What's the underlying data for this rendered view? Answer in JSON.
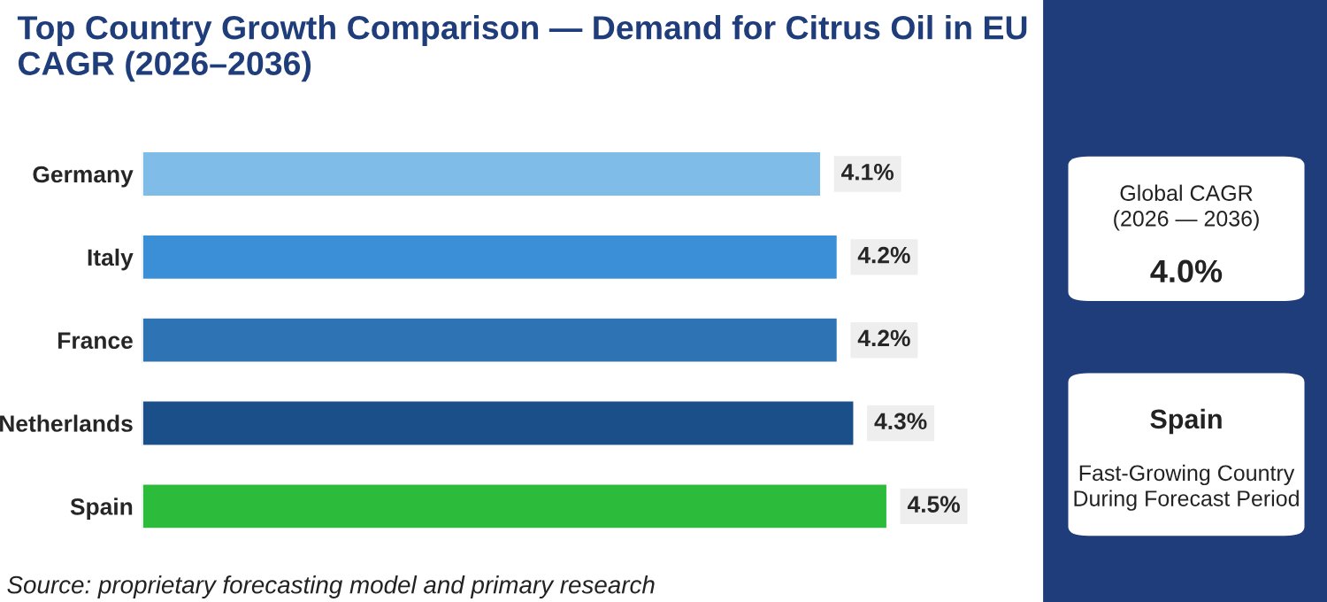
{
  "chart_data": {
    "type": "bar",
    "orientation": "horizontal",
    "title": "Top Country Growth Comparison — Demand for Citrus Oil in EU CAGR (2026–2036)",
    "categories": [
      "Germany",
      "Italy",
      "France",
      "Netherlands",
      "Spain"
    ],
    "values": [
      4.1,
      4.2,
      4.2,
      4.3,
      4.5
    ],
    "colors": [
      "#7fbde8",
      "#3a8fd6",
      "#2e74b5",
      "#1b4f8a",
      "#2dbb3c"
    ],
    "tick_labels": "y",
    "grid": false,
    "legend": false,
    "value_labels": [
      "4.1%",
      "4.2%",
      "4.2%",
      "4.3%",
      "4.5%"
    ],
    "annotations": [
      "Source: proprietary forecasting model and primary research",
      "Global CAGR\n(2026 — 2036)",
      "4.0%",
      "Spain",
      "Fast-Growing Country\nDuring Forecast Period"
    ]
  }
}
